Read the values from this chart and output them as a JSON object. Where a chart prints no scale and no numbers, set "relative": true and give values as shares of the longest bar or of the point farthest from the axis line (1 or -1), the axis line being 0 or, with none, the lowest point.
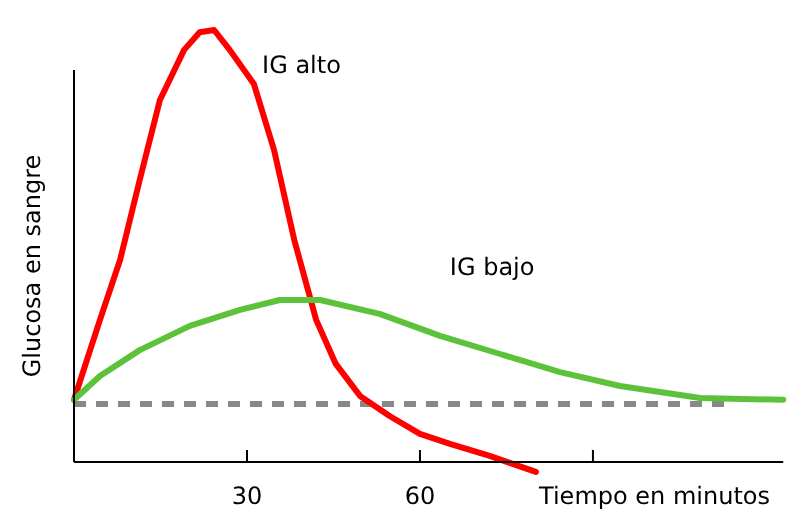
{
  "chart_data": {
    "type": "line",
    "relative": true,
    "xlabel": "Tiempo en minutos",
    "ylabel": "Glucosa en sangre",
    "xlim": [
      0,
      123
    ],
    "xticks": [
      30,
      60,
      {
        "value": 90,
        "label": null
      }
    ],
    "grid": false,
    "marker": "none",
    "line_style": "solid",
    "series": [
      {
        "name": "IG alto",
        "color": "#ff0000",
        "x": [
          0,
          4.5,
          8,
          11.4,
          14.9,
          19.1,
          21.8,
          24.3,
          27,
          31.2,
          34.7,
          38.2,
          42,
          45.4,
          49.6,
          54.8,
          60,
          65.2,
          72.1,
          80.1
        ],
        "values": [
          0.144,
          0.329,
          0.468,
          0.653,
          0.838,
          0.954,
          0.995,
          1,
          0.954,
          0.875,
          0.722,
          0.514,
          0.329,
          0.227,
          0.153,
          0.106,
          0.065,
          0.042,
          0.014,
          -0.023
        ]
      },
      {
        "name": "IG bajo",
        "color": "#5cc23a",
        "x": [
          0,
          4.5,
          11.4,
          20.1,
          28.8,
          35.7,
          42.7,
          53,
          63.5,
          73.9,
          84.3,
          94.7,
          108.6,
          123
        ],
        "values": [
          0.144,
          0.199,
          0.259,
          0.315,
          0.352,
          0.375,
          0.375,
          0.343,
          0.292,
          0.25,
          0.208,
          0.176,
          0.148,
          0.144
        ]
      }
    ],
    "ref_lines": [
      {
        "axis": "y",
        "value": 0.134,
        "color": "#888888",
        "line_style": "dashed"
      }
    ]
  }
}
